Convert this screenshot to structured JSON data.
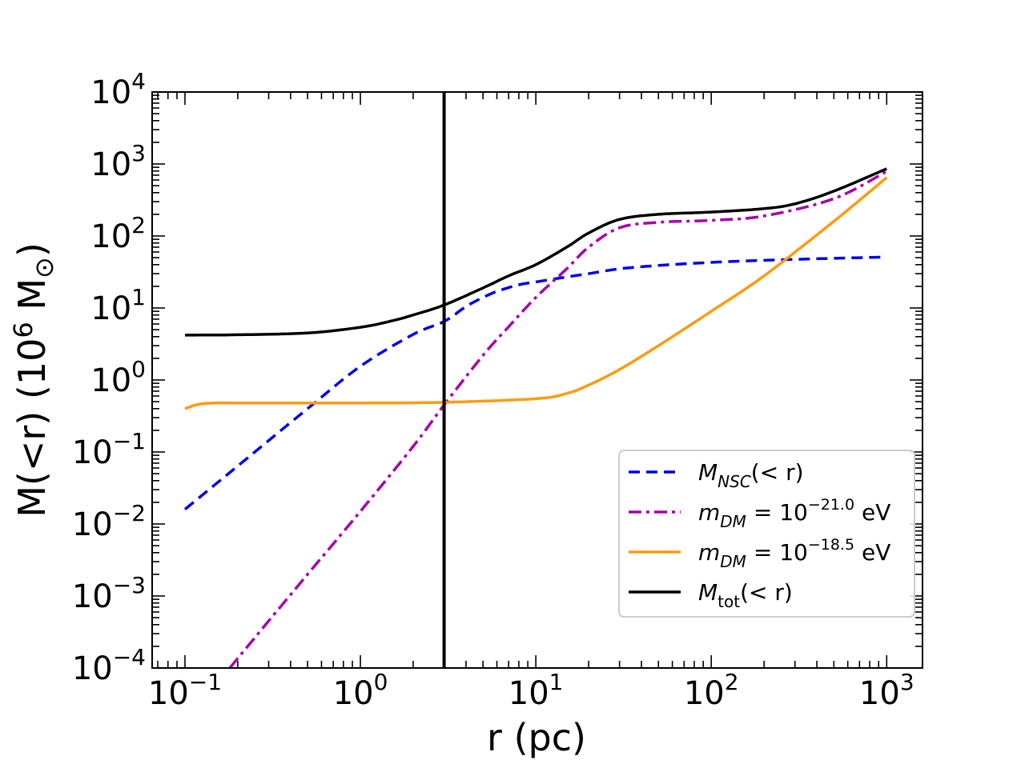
{
  "chart_data": {
    "type": "line",
    "title": "",
    "xlabel": "r (pc)",
    "ylabel_main": "M(<r) (10",
    "ylabel_exp": "6",
    "ylabel_unit": " M",
    "ylabel_sub": "⊙",
    "ylabel_close": ")",
    "xscale": "log",
    "yscale": "log",
    "xlim": [
      0.065,
      1600
    ],
    "ylim": [
      0.0001,
      10000
    ],
    "x_ticks": [
      {
        "value": 0.1,
        "base": "10",
        "exp": "−1"
      },
      {
        "value": 1,
        "base": "10",
        "exp": "0"
      },
      {
        "value": 10,
        "base": "10",
        "exp": "1"
      },
      {
        "value": 100,
        "base": "10",
        "exp": "2"
      },
      {
        "value": 1000,
        "base": "10",
        "exp": "3"
      }
    ],
    "y_ticks": [
      {
        "value": 0.0001,
        "base": "10",
        "exp": "−4"
      },
      {
        "value": 0.001,
        "base": "10",
        "exp": "−3"
      },
      {
        "value": 0.01,
        "base": "10",
        "exp": "−2"
      },
      {
        "value": 0.1,
        "base": "10",
        "exp": "−1"
      },
      {
        "value": 1,
        "base": "10",
        "exp": "0"
      },
      {
        "value": 10,
        "base": "10",
        "exp": "1"
      },
      {
        "value": 100,
        "base": "10",
        "exp": "2"
      },
      {
        "value": 1000,
        "base": "10",
        "exp": "3"
      },
      {
        "value": 10000,
        "base": "10",
        "exp": "4"
      }
    ],
    "vline": {
      "x": 3,
      "color": "#000000"
    },
    "legend_position": "lower right",
    "series": [
      {
        "name": "M_NSC(<r)",
        "legend_main": "M",
        "legend_sub": "NSC",
        "legend_rest": "(< r)",
        "legend_sup": "",
        "legend_tail": "",
        "color": "#0000ee",
        "style": "dashed",
        "x": [
          0.1,
          0.2,
          0.5,
          1,
          2,
          3,
          4,
          5,
          6,
          8,
          10,
          15,
          20,
          30,
          50,
          100,
          200,
          500,
          1000
        ],
        "y": [
          0.016,
          0.064,
          0.4,
          1.55,
          4.3,
          6.5,
          10.5,
          14,
          17,
          21,
          23,
          27,
          30,
          35,
          39,
          43,
          46,
          49,
          51
        ]
      },
      {
        "name": "m_DM = 10^-21.0 eV",
        "legend_main": "m",
        "legend_sub": "DM",
        "legend_rest": " = 10",
        "legend_sup": "−21.0",
        "legend_tail": " eV",
        "color": "#aa00aa",
        "style": "dashdot",
        "x": [
          0.18,
          0.3,
          0.5,
          1,
          2,
          3,
          5,
          7,
          10,
          15,
          20,
          30,
          50,
          100,
          200,
          500,
          1000
        ],
        "y": [
          0.0001,
          0.00045,
          0.002,
          0.015,
          0.12,
          0.45,
          2.2,
          5.5,
          14,
          35,
          70,
          130,
          155,
          165,
          190,
          330,
          790
        ]
      },
      {
        "name": "m_DM = 10^-18.5 eV",
        "legend_main": "m",
        "legend_sub": "DM",
        "legend_rest": " = 10",
        "legend_sup": "−18.5",
        "legend_tail": " eV",
        "color": "#ff9b0f",
        "style": "solid",
        "x": [
          0.1,
          0.12,
          0.15,
          0.2,
          0.5,
          1,
          3,
          10,
          15,
          20,
          30,
          50,
          100,
          200,
          500,
          1000
        ],
        "y": [
          0.4,
          0.46,
          0.48,
          0.48,
          0.48,
          0.48,
          0.49,
          0.55,
          0.65,
          0.85,
          1.4,
          3.0,
          9,
          28,
          160,
          650
        ]
      },
      {
        "name": "M_tot(<r)",
        "legend_main": "M",
        "legend_sub": "tot",
        "legend_rest": "(< r)",
        "legend_sup": "",
        "legend_tail": "",
        "color": "#000000",
        "style": "solid",
        "x": [
          0.1,
          0.2,
          0.5,
          1,
          1.5,
          2,
          3,
          5,
          7,
          10,
          15,
          20,
          30,
          50,
          100,
          200,
          300,
          500,
          1000
        ],
        "y": [
          4.2,
          4.25,
          4.5,
          5.4,
          6.6,
          8.0,
          11,
          19,
          28,
          40,
          70,
          110,
          170,
          200,
          215,
          240,
          280,
          420,
          860
        ]
      }
    ]
  }
}
